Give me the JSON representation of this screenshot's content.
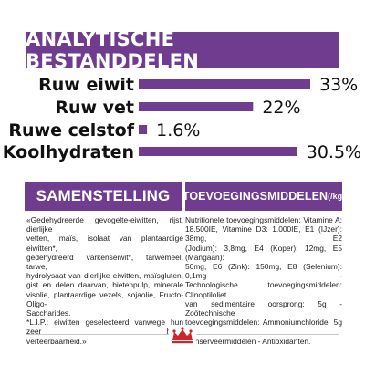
{
  "header": {
    "title": "ANALYTISCHE BESTANDDELEN"
  },
  "chart_data": {
    "type": "bar",
    "orientation": "horizontal",
    "categories": [
      "Ruw eiwit",
      "Ruw vet",
      "Ruwe celstof",
      "Koolhydraten"
    ],
    "values": [
      33,
      22,
      1.6,
      30.5
    ],
    "value_labels": [
      "33%",
      "22%",
      "1.6%",
      "30.5%"
    ],
    "xlim": [
      0,
      33
    ],
    "bar_color": "#6f3c90",
    "grid": false
  },
  "composition": {
    "title": "SAMENSTELLING",
    "lines": [
      "«Gedehydreerde gevogelte-eiwitten, rijst, dierlijke",
      "vetten, maïs, isolaat van plantaardige eiwitten*,",
      "gedehydreerd varkenseiwit*, tarwemeel, tarwe,",
      "hydrolysaat van dierlijke eiwitten, maïsgluten,",
      "gist en delen daarvan, bietenpulp, minerale",
      "visolie, plantaardige vezels, sojaolie, Fructo-Oligo-",
      "Saccharides.",
      "*L.I.P.: eiwitten geselecteerd vanwege hun zeer hoge",
      "verteerbaarheid.»"
    ]
  },
  "additives": {
    "title": "TOEVOEGINGSMIDDELEN",
    "unit": "(/kg)",
    "lines": [
      "Nutritionele toevoegingsmiddelen: Vitamine A:",
      "18.500IE, Vitamine D3: 1.000IE, E1 (IJzer): 38mg, E2",
      "(Jodium): 3,8mg, E4 (Koper): 12mg, E5 (Mangaan):",
      "50mg, E6 (Zink): 150mg, E8 (Selenium): 0,1mg -",
      "Technologische toevoegingsmiddelen: Clinoptiloliet",
      "van sedimentaire oorsprong: 5g - Zoötechnische",
      "toevoegingsmiddelen: Ammoniumchloride: 5g -",
      "Conserveermiddelen - Antioxidanten."
    ]
  },
  "logo": {
    "name": "crown-icon",
    "color": "#d2232a"
  }
}
